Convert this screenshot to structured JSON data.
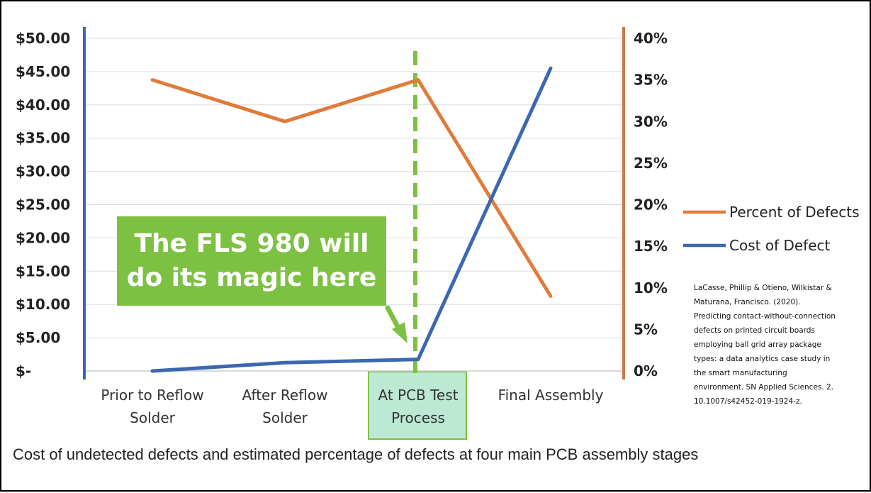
{
  "chart_data": {
    "type": "line",
    "categories": [
      [
        "Prior to Reflow",
        "Solder"
      ],
      [
        "After Reflow",
        "Solder"
      ],
      [
        "At PCB Test",
        "Process"
      ],
      [
        "Final Assembly"
      ]
    ],
    "highlighted_category": 2,
    "y_left": {
      "ticks": [
        "$50.00",
        "$45.00",
        "$40.00",
        "$35.00",
        "$30.00",
        "$25.00",
        "$20.00",
        "$15.00",
        "$10.00",
        "$5.00",
        "$-"
      ],
      "range": [
        0,
        50
      ],
      "axis_color": "#3b68b0"
    },
    "y_right": {
      "ticks": [
        "40%",
        "35%",
        "30%",
        "25%",
        "20%",
        "15%",
        "10%",
        "5%",
        "0%"
      ],
      "range": [
        0,
        40
      ],
      "axis_color": "#c97a48"
    },
    "series": [
      {
        "name": "Percent of Defects",
        "axis": "right",
        "color": "#e07b39",
        "values": [
          35,
          30,
          35,
          9
        ]
      },
      {
        "name": "Cost of Defect",
        "axis": "left",
        "color": "#3c68b0",
        "values": [
          0,
          1.25,
          1.75,
          45.5
        ]
      }
    ],
    "grid": true,
    "legend_position": "right",
    "annotation": {
      "text": "The FLS 980 will\ndo its magic here",
      "background": "#7dc142"
    },
    "citation": "LaCasse, Phillip & Otieno, Wilkistar & Maturana, Francisco. (2020). Predicting contact-without-connection defects on printed circuit boards employing ball grid array package types: a data analytics case study in the smart manufacturing environment. SN Applied Sciences. 2. 10.1007/s42452-019-1924-z."
  },
  "caption": "Cost of undetected defects and estimated percentage of defects at four main PCB assembly stages"
}
